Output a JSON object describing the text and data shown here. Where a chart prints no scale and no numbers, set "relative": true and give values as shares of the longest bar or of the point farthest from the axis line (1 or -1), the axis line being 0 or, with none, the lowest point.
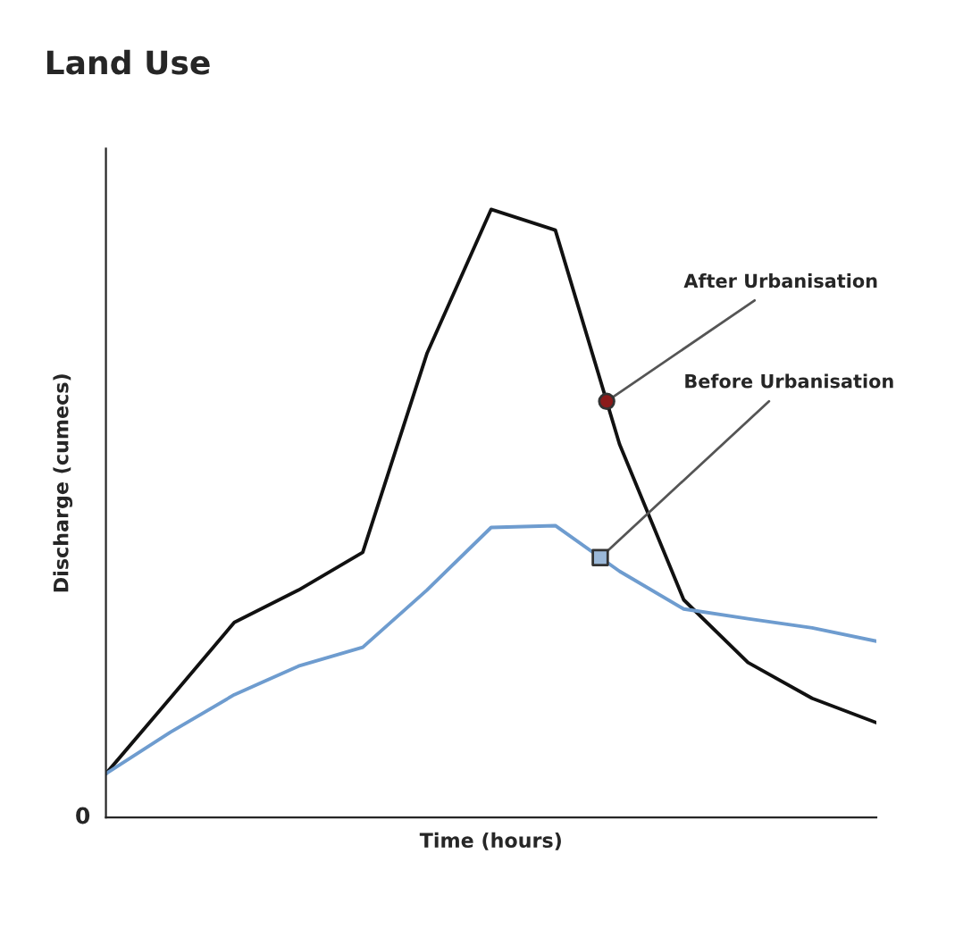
{
  "chart_data": {
    "type": "line",
    "title": "Land Use",
    "xlabel": "Time (hours)",
    "ylabel": "Discharge (cumecs)",
    "relative": true,
    "categories": [
      null,
      null,
      null,
      null,
      null,
      null,
      null,
      null,
      null,
      null,
      null,
      null,
      null
    ],
    "series": [
      {
        "color": "#111111",
        "values": [
          0.072,
          0.196,
          0.321,
          0.374,
          0.436,
          0.763,
          1.0,
          0.966,
          0.614,
          0.358,
          0.255,
          0.196,
          0.156
        ]
      },
      {
        "color": "#6e9ccf",
        "values": [
          0.072,
          0.14,
          0.202,
          0.249,
          0.28,
          0.374,
          0.477,
          0.48,
          0.405,
          0.343,
          0.327,
          0.312,
          0.29
        ]
      }
    ],
    "annotations": [
      "After Urbanisation",
      "Before Urbanisation",
      "0"
    ],
    "line_style": "solid",
    "marker": "none",
    "legend": false
  }
}
